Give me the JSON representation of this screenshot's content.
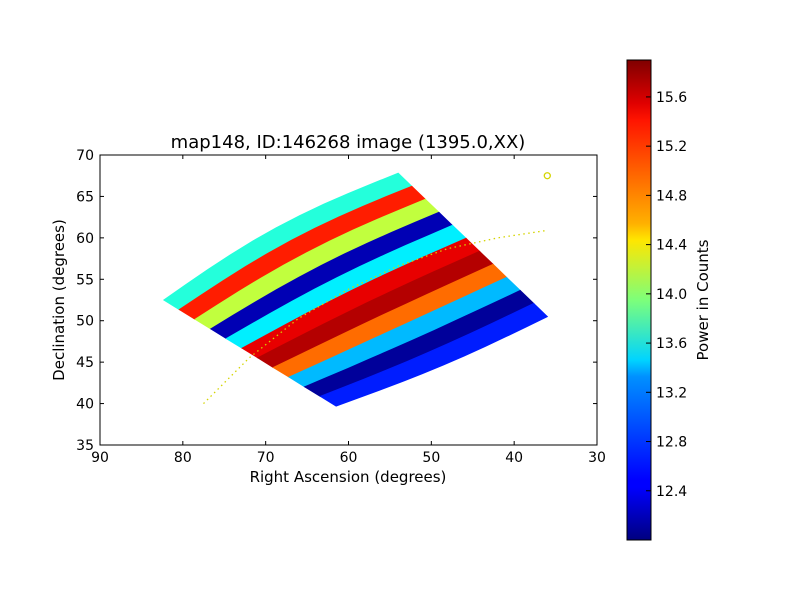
{
  "chart_data": {
    "type": "heatmap",
    "title": "map148, ID:146268 image (1395.0,XX)",
    "xlabel": "Right Ascension (degrees)",
    "ylabel": "Declination (degrees)",
    "xlim": [
      90,
      30
    ],
    "ylim": [
      35,
      70
    ],
    "x_ticks": [
      "90",
      "80",
      "70",
      "60",
      "50",
      "40",
      "30"
    ],
    "y_ticks": [
      "35",
      "40",
      "45",
      "50",
      "55",
      "60",
      "65",
      "70"
    ],
    "colorbar": {
      "label": "Power in Counts",
      "range": [
        12.0,
        15.9
      ],
      "ticks": [
        "12.4",
        "12.8",
        "13.2",
        "13.6",
        "14.0",
        "14.4",
        "14.8",
        "15.2",
        "15.6"
      ],
      "colormap": "jet"
    },
    "map_region_corners": {
      "ra": [
        82.3,
        54.0,
        36.0,
        61.5
      ],
      "dec": [
        52.5,
        67.8,
        50.5,
        39.7
      ]
    },
    "stripes": [
      {
        "level": 13.6
      },
      {
        "level": 15.3
      },
      {
        "level": 14.2
      },
      {
        "level": 12.2
      },
      {
        "level": 13.4
      },
      {
        "level": 15.5
      },
      {
        "level": 15.7
      },
      {
        "level": 15.0
      },
      {
        "level": 13.2
      },
      {
        "level": 12.1
      },
      {
        "level": 12.6
      }
    ],
    "overlay": {
      "track": {
        "ra": [
          77.5,
          72.0,
          66.0,
          60.0,
          54.0,
          48.0,
          42.0,
          36.0
        ],
        "dec": [
          40.0,
          45.5,
          50.3,
          53.8,
          56.6,
          58.7,
          60.0,
          60.9
        ],
        "color": "#d4d400",
        "style": "dotted"
      },
      "marker": {
        "ra": 36.0,
        "dec": 67.5,
        "color": "#d4d400",
        "shape": "circle"
      }
    },
    "grid": false
  }
}
